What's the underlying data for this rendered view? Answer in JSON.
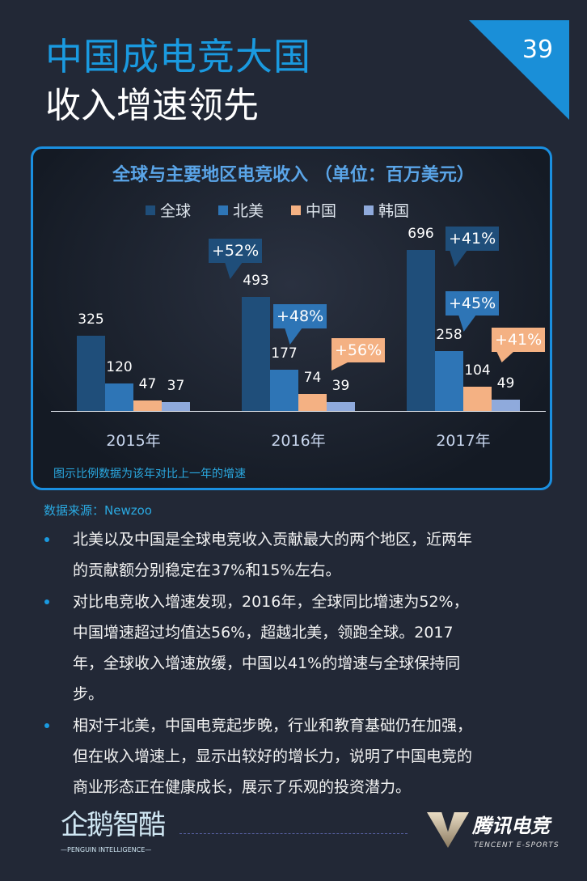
{
  "header": {
    "title_line1": "中国成电竞大国",
    "title_line2": "收入增速领先",
    "page_number": "39"
  },
  "chart_data": {
    "type": "bar",
    "title": "全球与主要地区电竞收入 （单位：百万美元）",
    "categories": [
      "2015年",
      "2016年",
      "2017年"
    ],
    "series": [
      {
        "name": "全球",
        "color": "#1f4e7a",
        "values": [
          325,
          493,
          696
        ]
      },
      {
        "name": "北美",
        "color": "#2e75b6",
        "values": [
          120,
          177,
          258
        ]
      },
      {
        "name": "中国",
        "color": "#f4b183",
        "values": [
          47,
          74,
          104
        ]
      },
      {
        "name": "韩国",
        "color": "#8faadc",
        "values": [
          37,
          39,
          49
        ]
      }
    ],
    "growth_callouts": [
      {
        "year": "2016年",
        "series": "全球",
        "label": "+52%"
      },
      {
        "year": "2016年",
        "series": "北美",
        "label": "+48%"
      },
      {
        "year": "2016年",
        "series": "中国",
        "label": "+56%"
      },
      {
        "year": "2017年",
        "series": "全球",
        "label": "+41%"
      },
      {
        "year": "2017年",
        "series": "北美",
        "label": "+45%"
      },
      {
        "year": "2017年",
        "series": "中国",
        "label": "+41%"
      }
    ],
    "legend_position": "top",
    "grid": false,
    "ylim": [
      0,
      696
    ],
    "note": "图示比例数据为该年对比上一年的增速"
  },
  "source": "数据来源：Newzoo",
  "bullets": [
    [
      "北美以及中国是全球电竞收入贡献最大的两个地区，近两年",
      "的贡献额分别稳定在37%和15%左右。"
    ],
    [
      "对比电竞收入增速发现，2016年，全球同比增速为52%，",
      "中国增速超过均值达56%，超越北美，领跑全球。2017",
      "年，全球收入增速放缓，中国以41%的增速与全球保持同",
      "步。"
    ],
    [
      "相对于北美，中国电竞起步晚，行业和教育基础仍在加强，",
      "但在收入增速上，显示出较好的增长力，说明了中国电竞的",
      "商业形态正在健康成长，展示了乐观的投资潜力。"
    ]
  ],
  "footer": {
    "logo_left": "企鹅智酷",
    "logo_left_sub": "—PENGUIN INTELLIGENCE—",
    "logo_right": "腾讯电竞",
    "logo_right_sub": "TENCENT E-SPORTS"
  }
}
